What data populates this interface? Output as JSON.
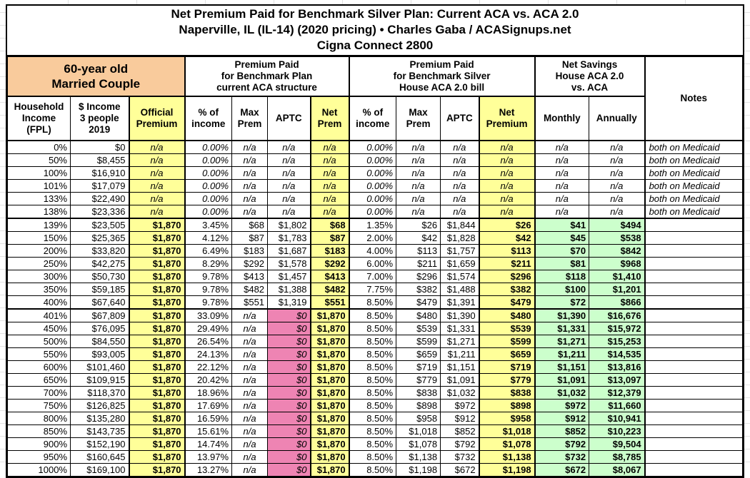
{
  "title": {
    "line1": "Net Premium Paid for Benchmark Silver Plan: Current ACA vs. ACA 2.0",
    "line2": "Naperville, IL (IL-14) (2020 pricing) • Charles Gaba / ACASignups.net",
    "line3": "Cigna Connect 2800"
  },
  "colors": {
    "demographic_header_bg": "#F9CB9C",
    "highlight_yellow": "#FFFF99",
    "savings_green": "#CCFFCC",
    "zero_aptc_pink": "#EE84B3",
    "border": "#000000"
  },
  "table": {
    "group_headers": {
      "demographic": "60-year old\nMarried Couple",
      "current_aca": "Premium Paid\nfor Benchmark Plan\ncurrent ACA structure",
      "aca20": "Premium Paid\nfor Benchmark Silver\nHouse ACA 2.0 bill",
      "net_savings": "Net Savings\nHouse ACA 2.0\nvs. ACA",
      "notes": "Notes"
    },
    "columns": [
      "Household\nIncome\n(FPL)",
      "$ Income\n3 people\n2019",
      "Official\nPremium",
      "% of\nincome",
      "Max\nPrem",
      "APTC",
      "Net\nPrem",
      "% of\nincome",
      "Max\nPrem",
      "APTC",
      "Net\nPremium",
      "Monthly",
      "Annually"
    ],
    "rows": [
      [
        "0%",
        "$0",
        "n/a",
        "0.00%",
        "n/a",
        "n/a",
        "n/a",
        "0.00%",
        "n/a",
        "n/a",
        "n/a",
        "n/a",
        "n/a",
        "both on Medicaid"
      ],
      [
        "50%",
        "$8,455",
        "n/a",
        "0.00%",
        "n/a",
        "n/a",
        "n/a",
        "0.00%",
        "n/a",
        "n/a",
        "n/a",
        "n/a",
        "n/a",
        "both on Medicaid"
      ],
      [
        "100%",
        "$16,910",
        "n/a",
        "0.00%",
        "n/a",
        "n/a",
        "n/a",
        "0.00%",
        "n/a",
        "n/a",
        "n/a",
        "n/a",
        "n/a",
        "both on Medicaid"
      ],
      [
        "101%",
        "$17,079",
        "n/a",
        "0.00%",
        "n/a",
        "n/a",
        "n/a",
        "0.00%",
        "n/a",
        "n/a",
        "n/a",
        "n/a",
        "n/a",
        "both on Medicaid"
      ],
      [
        "133%",
        "$22,490",
        "n/a",
        "0.00%",
        "n/a",
        "n/a",
        "n/a",
        "0.00%",
        "n/a",
        "n/a",
        "n/a",
        "n/a",
        "n/a",
        "both on Medicaid"
      ],
      [
        "138%",
        "$23,336",
        "n/a",
        "0.00%",
        "n/a",
        "n/a",
        "n/a",
        "0.00%",
        "n/a",
        "n/a",
        "n/a",
        "n/a",
        "n/a",
        "both on Medicaid"
      ],
      [
        "139%",
        "$23,505",
        "$1,870",
        "3.45%",
        "$68",
        "$1,802",
        "$68",
        "1.35%",
        "$26",
        "$1,844",
        "$26",
        "$41",
        "$494",
        ""
      ],
      [
        "150%",
        "$25,365",
        "$1,870",
        "4.12%",
        "$87",
        "$1,783",
        "$87",
        "2.00%",
        "$42",
        "$1,828",
        "$42",
        "$45",
        "$538",
        ""
      ],
      [
        "200%",
        "$33,820",
        "$1,870",
        "6.49%",
        "$183",
        "$1,687",
        "$183",
        "4.00%",
        "$113",
        "$1,757",
        "$113",
        "$70",
        "$842",
        ""
      ],
      [
        "250%",
        "$42,275",
        "$1,870",
        "8.29%",
        "$292",
        "$1,578",
        "$292",
        "6.00%",
        "$211",
        "$1,659",
        "$211",
        "$81",
        "$968",
        ""
      ],
      [
        "300%",
        "$50,730",
        "$1,870",
        "9.78%",
        "$413",
        "$1,457",
        "$413",
        "7.00%",
        "$296",
        "$1,574",
        "$296",
        "$118",
        "$1,410",
        ""
      ],
      [
        "350%",
        "$59,185",
        "$1,870",
        "9.78%",
        "$482",
        "$1,388",
        "$482",
        "7.75%",
        "$382",
        "$1,488",
        "$382",
        "$100",
        "$1,201",
        ""
      ],
      [
        "400%",
        "$67,640",
        "$1,870",
        "9.78%",
        "$551",
        "$1,319",
        "$551",
        "8.50%",
        "$479",
        "$1,391",
        "$479",
        "$72",
        "$866",
        ""
      ],
      [
        "401%",
        "$67,809",
        "$1,870",
        "33.09%",
        "n/a",
        "$0",
        "$1,870",
        "8.50%",
        "$480",
        "$1,390",
        "$480",
        "$1,390",
        "$16,676",
        ""
      ],
      [
        "450%",
        "$76,095",
        "$1,870",
        "29.49%",
        "n/a",
        "$0",
        "$1,870",
        "8.50%",
        "$539",
        "$1,331",
        "$539",
        "$1,331",
        "$15,972",
        ""
      ],
      [
        "500%",
        "$84,550",
        "$1,870",
        "26.54%",
        "n/a",
        "$0",
        "$1,870",
        "8.50%",
        "$599",
        "$1,271",
        "$599",
        "$1,271",
        "$15,253",
        ""
      ],
      [
        "550%",
        "$93,005",
        "$1,870",
        "24.13%",
        "n/a",
        "$0",
        "$1,870",
        "8.50%",
        "$659",
        "$1,211",
        "$659",
        "$1,211",
        "$14,535",
        ""
      ],
      [
        "600%",
        "$101,460",
        "$1,870",
        "22.12%",
        "n/a",
        "$0",
        "$1,870",
        "8.50%",
        "$719",
        "$1,151",
        "$719",
        "$1,151",
        "$13,816",
        ""
      ],
      [
        "650%",
        "$109,915",
        "$1,870",
        "20.42%",
        "n/a",
        "$0",
        "$1,870",
        "8.50%",
        "$779",
        "$1,091",
        "$779",
        "$1,091",
        "$13,097",
        ""
      ],
      [
        "700%",
        "$118,370",
        "$1,870",
        "18.96%",
        "n/a",
        "$0",
        "$1,870",
        "8.50%",
        "$838",
        "$1,032",
        "$838",
        "$1,032",
        "$12,379",
        ""
      ],
      [
        "750%",
        "$126,825",
        "$1,870",
        "17.69%",
        "n/a",
        "$0",
        "$1,870",
        "8.50%",
        "$898",
        "$972",
        "$898",
        "$972",
        "$11,660",
        ""
      ],
      [
        "800%",
        "$135,280",
        "$1,870",
        "16.59%",
        "n/a",
        "$0",
        "$1,870",
        "8.50%",
        "$958",
        "$912",
        "$958",
        "$912",
        "$10,941",
        ""
      ],
      [
        "850%",
        "$143,735",
        "$1,870",
        "15.61%",
        "n/a",
        "$0",
        "$1,870",
        "8.50%",
        "$1,018",
        "$852",
        "$1,018",
        "$852",
        "$10,223",
        ""
      ],
      [
        "900%",
        "$152,190",
        "$1,870",
        "14.74%",
        "n/a",
        "$0",
        "$1,870",
        "8.50%",
        "$1,078",
        "$792",
        "$1,078",
        "$792",
        "$9,504",
        ""
      ],
      [
        "950%",
        "$160,645",
        "$1,870",
        "13.97%",
        "n/a",
        "$0",
        "$1,870",
        "8.50%",
        "$1,138",
        "$732",
        "$1,138",
        "$732",
        "$8,785",
        ""
      ],
      [
        "1000%",
        "$169,100",
        "$1,870",
        "13.27%",
        "n/a",
        "$0",
        "$1,870",
        "8.50%",
        "$1,198",
        "$672",
        "$1,198",
        "$672",
        "$8,067",
        ""
      ]
    ]
  }
}
